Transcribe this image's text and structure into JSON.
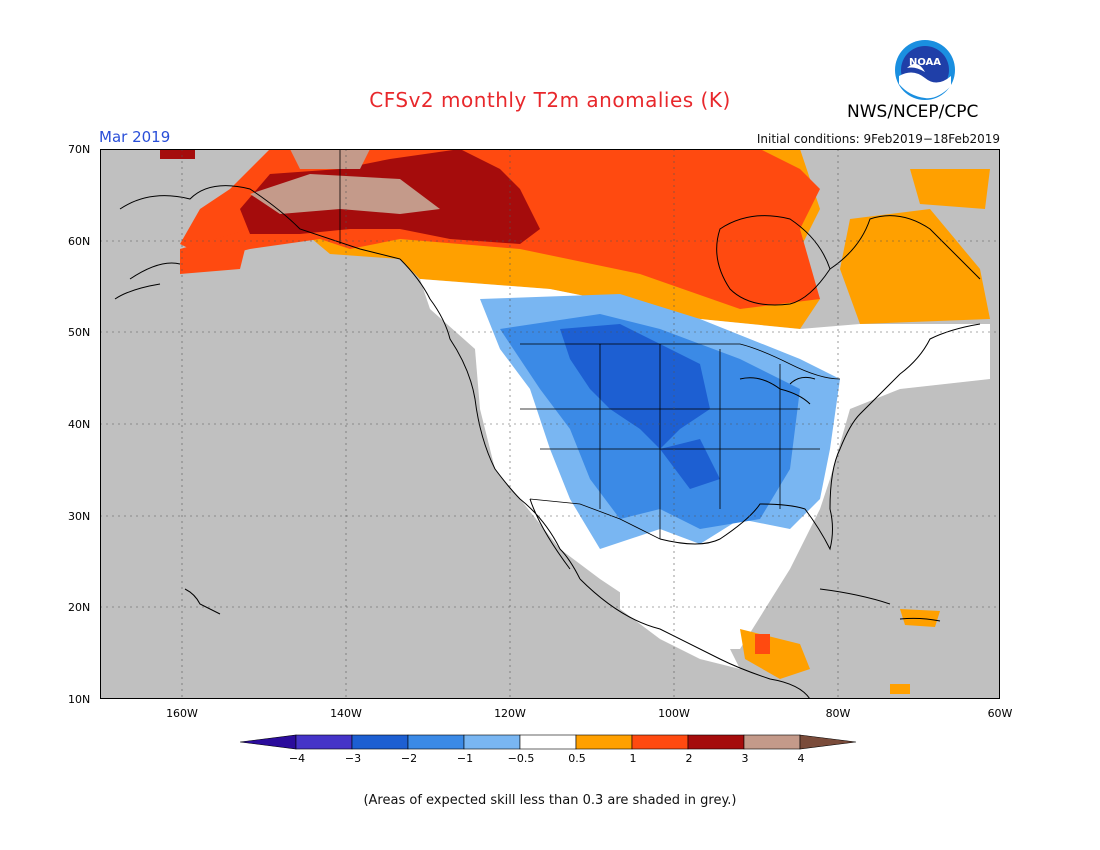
{
  "header": {
    "title": "CFSv2 monthly T2m anomalies (K)",
    "month": "Mar 2019",
    "initial_conditions": "Initial conditions: 9Feb2019−18Feb2019",
    "agency": "NWS/NCEP/CPC",
    "logo_text": "NOAA"
  },
  "map": {
    "lat_labels": [
      "70N",
      "60N",
      "50N",
      "40N",
      "30N",
      "20N",
      "10N"
    ],
    "lon_labels": [
      "160W",
      "140W",
      "120W",
      "100W",
      "80W",
      "60W"
    ],
    "extent": {
      "lon": [
        -171,
        -60
      ],
      "lat": [
        10,
        70
      ]
    },
    "land_base_color": "#c0c0c0",
    "ocean_color": "#c0c0c0"
  },
  "legend": {
    "ticks": [
      "−4",
      "−3",
      "−2",
      "−1",
      "−0.5",
      "0.5",
      "1",
      "2",
      "3",
      "4"
    ],
    "colors": [
      "#2b0c9c",
      "#4534c8",
      "#1d5fd2",
      "#3b8ae6",
      "#79b6f2",
      "#ffffff",
      "#ffa000",
      "#ff4a10",
      "#a50c0c",
      "#c49a8a",
      "#7a4b3a"
    ]
  },
  "footnote": "(Areas of expected skill less than 0.3 are shaded in grey.)"
}
